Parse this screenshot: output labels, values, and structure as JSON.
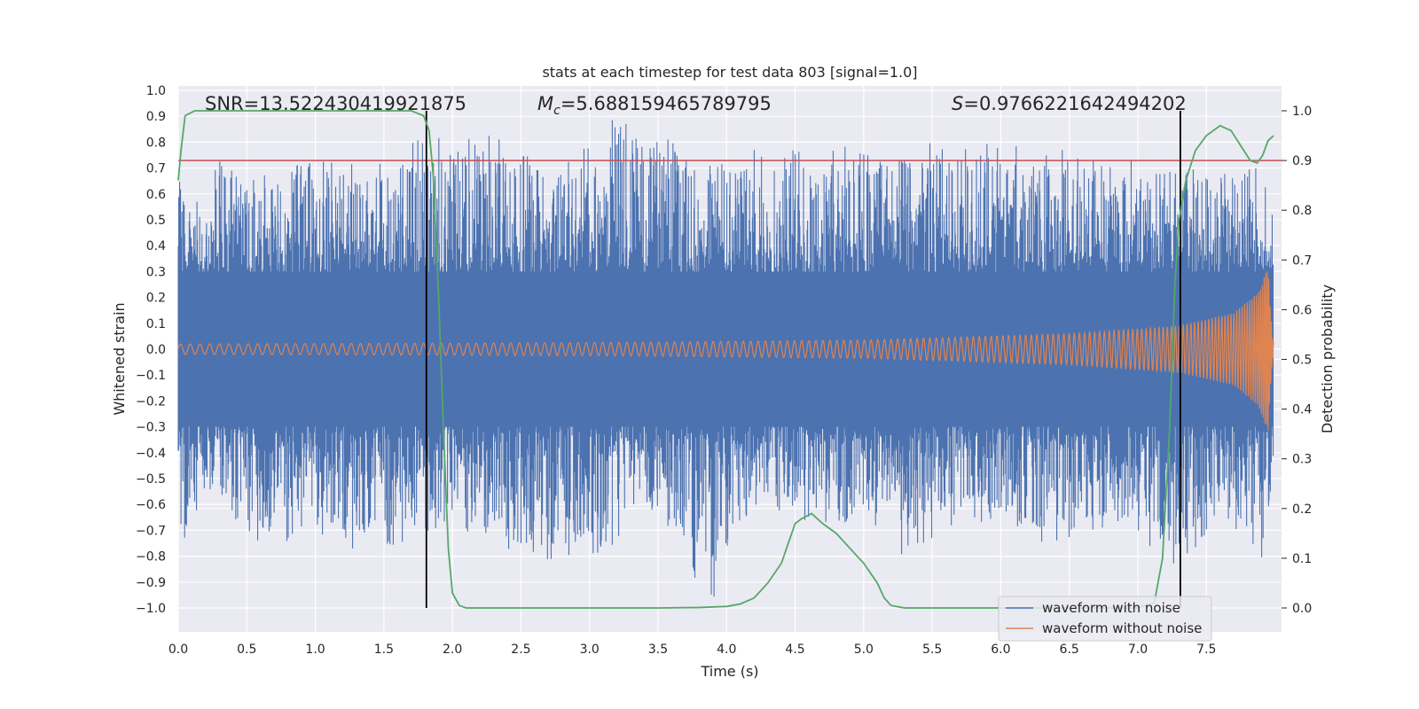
{
  "chart_data": {
    "type": "line",
    "title": "stats at each timestep for test data 803 [signal=1.0]",
    "xlabel": "Time (s)",
    "ylabel": "Whitened strain",
    "y2label": "Detection probability",
    "xlim": [
      0.0,
      8.0
    ],
    "ylim": [
      -1.09,
      1.0
    ],
    "y2lim": [
      -0.048,
      1.045
    ],
    "xticks": [
      "0.0",
      "0.5",
      "1.0",
      "1.5",
      "2.0",
      "2.5",
      "3.0",
      "3.5",
      "4.0",
      "4.5",
      "5.0",
      "5.5",
      "6.0",
      "6.5",
      "7.0",
      "7.5"
    ],
    "yticks": [
      "1.0",
      "0.9",
      "0.8",
      "0.7",
      "0.6",
      "0.5",
      "0.4",
      "0.3",
      "0.2",
      "0.1",
      "0.0",
      "−0.1",
      "−0.2",
      "−0.3",
      "−0.4",
      "−0.5",
      "−0.6",
      "−0.7",
      "−0.8",
      "−0.9",
      "−1.0"
    ],
    "y2ticks": [
      "1.0",
      "0.9",
      "0.8",
      "0.7",
      "0.6",
      "0.5",
      "0.4",
      "0.3",
      "0.2",
      "0.1",
      "0.0"
    ],
    "annotations": {
      "snr_prefix": "SNR=",
      "snr_value": "13.522430419921875",
      "mc_symbol": "M",
      "mc_sub": "c",
      "mc_value": "=5.688159465789795",
      "s_symbol": "S",
      "s_value": "=0.9766221642494202"
    },
    "threshold": {
      "value": 0.9,
      "color": "#c44e52"
    },
    "vlines": [
      1.81,
      7.31
    ],
    "series": [
      {
        "name": "waveform with noise",
        "color": "#4c72b0",
        "axis": "left",
        "envelope": [
          {
            "x": 0.0,
            "hi": 0.62,
            "lo": -0.55
          },
          {
            "x": 0.03,
            "hi": 0.76,
            "lo": -0.82
          },
          {
            "x": 0.2,
            "hi": 0.48,
            "lo": -0.6
          },
          {
            "x": 0.3,
            "hi": 0.8,
            "lo": -0.55
          },
          {
            "x": 0.55,
            "hi": 0.68,
            "lo": -0.87
          },
          {
            "x": 0.9,
            "hi": 0.73,
            "lo": -0.7
          },
          {
            "x": 1.4,
            "hi": 0.72,
            "lo": -0.8
          },
          {
            "x": 1.8,
            "hi": 0.82,
            "lo": -0.72
          },
          {
            "x": 2.5,
            "hi": 0.84,
            "lo": -0.78
          },
          {
            "x": 2.7,
            "hi": 0.66,
            "lo": -0.88
          },
          {
            "x": 3.2,
            "hi": 0.93,
            "lo": -0.75
          },
          {
            "x": 3.35,
            "hi": 0.88,
            "lo": -0.6
          },
          {
            "x": 3.9,
            "hi": 0.72,
            "lo": -0.98
          },
          {
            "x": 4.2,
            "hi": 0.8,
            "lo": -0.6
          },
          {
            "x": 4.7,
            "hi": 0.78,
            "lo": -0.7
          },
          {
            "x": 5.3,
            "hi": 0.8,
            "lo": -0.8
          },
          {
            "x": 5.75,
            "hi": 0.8,
            "lo": -0.65
          },
          {
            "x": 6.3,
            "hi": 0.78,
            "lo": -0.75
          },
          {
            "x": 6.8,
            "hi": 0.75,
            "lo": -0.7
          },
          {
            "x": 7.3,
            "hi": 0.78,
            "lo": -0.85
          },
          {
            "x": 7.6,
            "hi": 0.7,
            "lo": -0.65
          },
          {
            "x": 7.92,
            "hi": 0.71,
            "lo": -0.83
          },
          {
            "x": 8.0,
            "hi": 0.55,
            "lo": -0.5
          }
        ]
      },
      {
        "name": "waveform without noise",
        "color": "#dd8452",
        "axis": "left",
        "amplitude": [
          {
            "x": 0.0,
            "a": 0.02
          },
          {
            "x": 3.0,
            "a": 0.025
          },
          {
            "x": 5.0,
            "a": 0.035
          },
          {
            "x": 6.5,
            "a": 0.06
          },
          {
            "x": 7.3,
            "a": 0.09
          },
          {
            "x": 7.7,
            "a": 0.14
          },
          {
            "x": 7.88,
            "a": 0.22
          },
          {
            "x": 7.95,
            "a": 0.32
          },
          {
            "x": 7.98,
            "a": 0.05
          },
          {
            "x": 8.0,
            "a": 0.0
          }
        ]
      },
      {
        "name": "detection probability",
        "color": "#55a868",
        "axis": "right",
        "points": [
          [
            0.0,
            0.86
          ],
          [
            0.02,
            0.92
          ],
          [
            0.05,
            0.99
          ],
          [
            0.12,
            1.0
          ],
          [
            0.5,
            1.0
          ],
          [
            1.0,
            1.0
          ],
          [
            1.5,
            1.0
          ],
          [
            1.7,
            1.0
          ],
          [
            1.79,
            0.99
          ],
          [
            1.83,
            0.96
          ],
          [
            1.86,
            0.87
          ],
          [
            1.9,
            0.62
          ],
          [
            1.94,
            0.32
          ],
          [
            1.97,
            0.12
          ],
          [
            2.0,
            0.03
          ],
          [
            2.05,
            0.005
          ],
          [
            2.1,
            0.0
          ],
          [
            3.0,
            0.0
          ],
          [
            3.5,
            0.0
          ],
          [
            3.8,
            0.001
          ],
          [
            4.0,
            0.003
          ],
          [
            4.1,
            0.008
          ],
          [
            4.2,
            0.02
          ],
          [
            4.3,
            0.05
          ],
          [
            4.4,
            0.09
          ],
          [
            4.5,
            0.17
          ],
          [
            4.55,
            0.18
          ],
          [
            4.62,
            0.19
          ],
          [
            4.7,
            0.17
          ],
          [
            4.8,
            0.15
          ],
          [
            4.9,
            0.12
          ],
          [
            5.0,
            0.09
          ],
          [
            5.1,
            0.05
          ],
          [
            5.15,
            0.02
          ],
          [
            5.2,
            0.005
          ],
          [
            5.3,
            0.0
          ],
          [
            6.0,
            0.0
          ],
          [
            6.5,
            0.0
          ],
          [
            7.0,
            0.0
          ],
          [
            7.12,
            0.01
          ],
          [
            7.18,
            0.1
          ],
          [
            7.23,
            0.35
          ],
          [
            7.27,
            0.65
          ],
          [
            7.3,
            0.78
          ],
          [
            7.35,
            0.86
          ],
          [
            7.42,
            0.92
          ],
          [
            7.5,
            0.95
          ],
          [
            7.6,
            0.97
          ],
          [
            7.68,
            0.96
          ],
          [
            7.75,
            0.93
          ],
          [
            7.82,
            0.9
          ],
          [
            7.87,
            0.895
          ],
          [
            7.91,
            0.91
          ],
          [
            7.95,
            0.94
          ],
          [
            7.99,
            0.95
          ]
        ]
      }
    ],
    "legend": [
      "waveform with noise",
      "waveform without noise"
    ],
    "legend_position": "lower-right",
    "grid": true
  }
}
